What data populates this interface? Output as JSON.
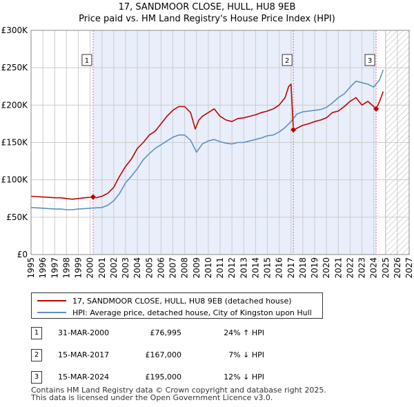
{
  "title_line1": "17, SANDMOOR CLOSE, HULL, HU8 9EB",
  "title_line2": "Price paid vs. HM Land Registry's House Price Index (HPI)",
  "colors": {
    "property": "#c00000",
    "hpi": "#5b8fc7",
    "shade": "#e8eefa",
    "grid": "#cccccc",
    "sale_line": "#e06a8a"
  },
  "chart_data": {
    "type": "line",
    "title": "17, SANDMOOR CLOSE, HULL, HU8 9EB — Price paid vs. HM Land Registry's House Price Index (HPI)",
    "xlim": [
      1995,
      2027
    ],
    "ylim": [
      0,
      300000
    ],
    "x_ticks": [
      "1995",
      "1996",
      "1997",
      "1998",
      "1999",
      "2000",
      "2001",
      "2002",
      "2003",
      "2004",
      "2005",
      "2006",
      "2007",
      "2008",
      "2009",
      "2010",
      "2011",
      "2012",
      "2013",
      "2014",
      "2015",
      "2016",
      "2017",
      "2018",
      "2019",
      "2020",
      "2021",
      "2022",
      "2023",
      "2024",
      "2025",
      "2026",
      "2027"
    ],
    "y_ticks": [
      {
        "value": 0,
        "label": "£0"
      },
      {
        "value": 50000,
        "label": "£50K"
      },
      {
        "value": 100000,
        "label": "£100K"
      },
      {
        "value": 150000,
        "label": "£150K"
      },
      {
        "value": 200000,
        "label": "£200K"
      },
      {
        "value": 250000,
        "label": "£250K"
      },
      {
        "value": 300000,
        "label": "£300K"
      }
    ],
    "shaded_period": [
      2000.25,
      2024.2
    ],
    "hatched_from": 2025.0,
    "series": [
      {
        "name": "property",
        "x": [
          1995.0,
          1995.5,
          1996.0,
          1996.5,
          1997.0,
          1997.5,
          1998.0,
          1998.5,
          1999.0,
          1999.5,
          2000.0,
          2000.25,
          2000.5,
          2001.0,
          2001.5,
          2002.0,
          2002.5,
          2003.0,
          2003.5,
          2004.0,
          2004.5,
          2005.0,
          2005.5,
          2006.0,
          2006.5,
          2007.0,
          2007.5,
          2008.0,
          2008.5,
          2008.9,
          2009.2,
          2009.5,
          2010.0,
          2010.5,
          2011.0,
          2011.5,
          2012.0,
          2012.5,
          2013.0,
          2013.5,
          2014.0,
          2014.5,
          2015.0,
          2015.5,
          2016.0,
          2016.5,
          2016.8,
          2017.0,
          2017.2,
          2017.5,
          2018.0,
          2018.5,
          2019.0,
          2019.5,
          2020.0,
          2020.5,
          2021.0,
          2021.5,
          2022.0,
          2022.5,
          2023.0,
          2023.5,
          2024.0,
          2024.2,
          2024.5,
          2024.8
        ],
        "y": [
          78000,
          77500,
          77000,
          76500,
          76000,
          76000,
          75000,
          74000,
          75000,
          76000,
          76500,
          76995,
          76000,
          78000,
          82000,
          90000,
          105000,
          118000,
          128000,
          142000,
          150000,
          160000,
          165000,
          175000,
          185000,
          193000,
          198000,
          198000,
          190000,
          168000,
          180000,
          185000,
          190000,
          195000,
          185000,
          180000,
          178000,
          182000,
          183000,
          185000,
          187000,
          190000,
          192000,
          195000,
          200000,
          210000,
          225000,
          228000,
          167000,
          169000,
          173000,
          175000,
          178000,
          180000,
          183000,
          190000,
          192000,
          198000,
          205000,
          210000,
          200000,
          205000,
          198000,
          195000,
          205000,
          218000
        ]
      },
      {
        "name": "hpi",
        "x": [
          1995.0,
          1995.5,
          1996.0,
          1996.5,
          1997.0,
          1997.5,
          1998.0,
          1998.5,
          1999.0,
          1999.5,
          2000.0,
          2000.5,
          2001.0,
          2001.5,
          2002.0,
          2002.5,
          2003.0,
          2003.5,
          2004.0,
          2004.5,
          2005.0,
          2005.5,
          2006.0,
          2006.5,
          2007.0,
          2007.5,
          2008.0,
          2008.5,
          2009.0,
          2009.5,
          2010.0,
          2010.5,
          2011.0,
          2011.5,
          2012.0,
          2012.5,
          2013.0,
          2013.5,
          2014.0,
          2014.5,
          2015.0,
          2015.5,
          2016.0,
          2016.5,
          2017.0,
          2017.5,
          2018.0,
          2018.5,
          2019.0,
          2019.5,
          2020.0,
          2020.5,
          2021.0,
          2021.5,
          2022.0,
          2022.5,
          2023.0,
          2023.5,
          2024.0,
          2024.5,
          2024.8
        ],
        "y": [
          63000,
          62500,
          62000,
          61500,
          61000,
          61000,
          60000,
          60000,
          61000,
          61500,
          62000,
          62500,
          63000,
          66000,
          72000,
          82000,
          96000,
          105000,
          115000,
          127000,
          135000,
          142000,
          147000,
          152000,
          157000,
          160000,
          160000,
          153000,
          137000,
          148000,
          152000,
          154000,
          151000,
          149000,
          148000,
          150000,
          150000,
          152000,
          154000,
          156000,
          159000,
          160000,
          164000,
          170000,
          178000,
          188000,
          191000,
          192000,
          193000,
          194000,
          197000,
          203000,
          210000,
          215000,
          224000,
          232000,
          230000,
          228000,
          224000,
          234000,
          247000
        ]
      }
    ],
    "sales": [
      {
        "id": "1",
        "x": 2000.25,
        "y": 76995
      },
      {
        "id": "2",
        "x": 2017.2,
        "y": 167000
      },
      {
        "id": "3",
        "x": 2024.2,
        "y": 195000
      }
    ]
  },
  "legend": {
    "property_label": "17, SANDMOOR CLOSE, HULL, HU8 9EB (detached house)",
    "hpi_label": "HPI: Average price, detached house, City of Kingston upon Hull"
  },
  "sales_table": [
    {
      "num": "1",
      "date": "31-MAR-2000",
      "price": "£76,995",
      "hpi": "24% ↑ HPI"
    },
    {
      "num": "2",
      "date": "15-MAR-2017",
      "price": "£167,000",
      "hpi": "7% ↓ HPI"
    },
    {
      "num": "3",
      "date": "15-MAR-2024",
      "price": "£195,000",
      "hpi": "12% ↓ HPI"
    }
  ],
  "footer": {
    "line1": "Contains HM Land Registry data © Crown copyright and database right 2025.",
    "line2": "This data is licensed under the Open Government Licence v3.0."
  }
}
